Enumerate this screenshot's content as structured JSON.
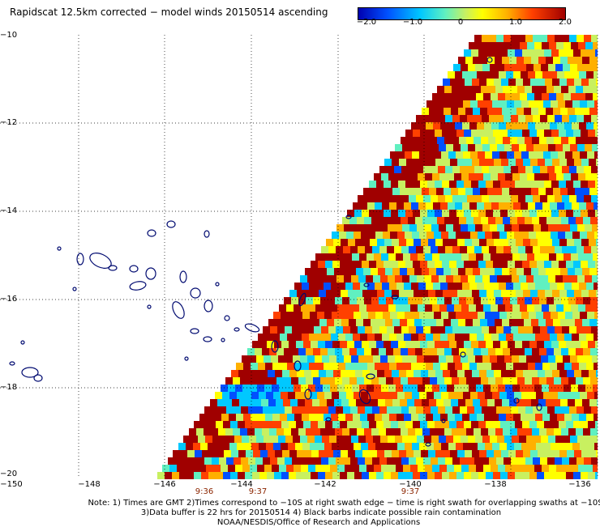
{
  "title": "Rapidscat 12.5km corrected − model winds 20150514 ascending",
  "colorbar": {
    "ticks": [
      "−2.0",
      "−1.0",
      "0",
      "1.0",
      "2.0"
    ],
    "colors": [
      "#0000b0",
      "#0050ff",
      "#00c8ff",
      "#60f0c0",
      "#c8f060",
      "#ffff00",
      "#ffb000",
      "#ff4000",
      "#a00000"
    ]
  },
  "lat_labels": [
    "−10",
    "−12",
    "−14",
    "−16",
    "−18",
    "−20"
  ],
  "lon_labels": [
    "−150",
    "−148",
    "−146",
    "−144",
    "−142",
    "−140",
    "−138",
    "−136"
  ],
  "time_labels": [
    "9:36",
    "9:37",
    "9:37"
  ],
  "notes": [
    "Note: 1) Times are GMT 2)Times correspond to −10S at right swath edge − time is right swath for overlapping swaths at −10S",
    "3)Data buffer is 22 hrs for 20150514 4) Black barbs indicate possible rain contamination",
    "NOAA/NESDIS/Office of Research and Applications"
  ]
}
